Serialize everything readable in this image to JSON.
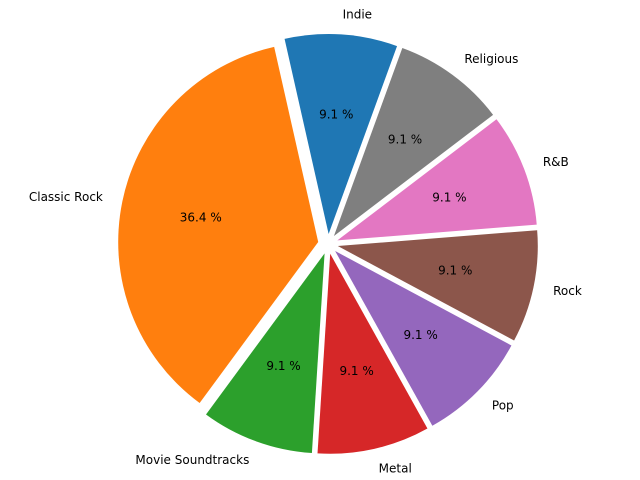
{
  "chart_data": {
    "type": "pie",
    "title": "",
    "categories": [
      "Indie",
      "Classic Rock",
      "Movie Soundtracks",
      "Metal",
      "Pop",
      "Rock",
      "R&B",
      "Religious"
    ],
    "values": [
      9.1,
      36.4,
      9.1,
      9.1,
      9.1,
      9.1,
      9.1,
      9.1
    ],
    "percent_labels": [
      "9.1 %",
      "36.4 %",
      "9.1 %",
      "9.1 %",
      "9.1 %",
      "9.1 %",
      "9.1 %",
      "9.1 %"
    ],
    "colors": [
      "#1f77b4",
      "#ff7f0e",
      "#2ca02c",
      "#d62728",
      "#9467bd",
      "#8c564b",
      "#e377c2",
      "#7f7f7f"
    ],
    "exploded": true,
    "start_angle_deg": 70,
    "direction": "counterclockwise",
    "legend": "none"
  }
}
